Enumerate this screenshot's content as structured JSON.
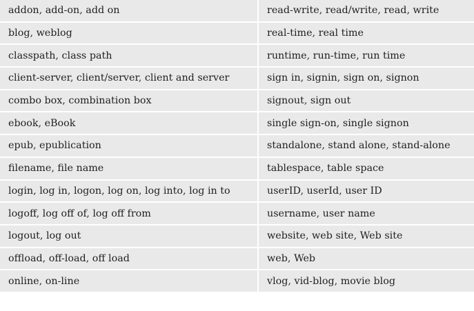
{
  "rows": [
    {
      "left": "addon, add-on, add on",
      "right": "read-write, read/write, read, write"
    },
    {
      "left": "blog, weblog",
      "right": "real-time, real time"
    },
    {
      "left": "classpath, class path",
      "right": "runtime, run-time, run time"
    },
    {
      "left": "client-server, client/server, client and server",
      "right": "sign in, signin, sign on, signon"
    },
    {
      "left": "combo box, combination box",
      "right": "signout, sign out"
    },
    {
      "left": "ebook, eBook",
      "right": "single sign-on, single signon"
    },
    {
      "left": "epub, epublication",
      "right": "standalone, stand alone, stand-alone"
    },
    {
      "left": "filename, file name",
      "right": "tablespace, table space"
    },
    {
      "left": "login, log in, logon, log on, log into, log in to",
      "right": "userID, userId, user ID"
    },
    {
      "left": "logoff, log off of, log off from",
      "right": "username, user name"
    },
    {
      "left": "logout, log out",
      "right": "website, web site, Web site"
    },
    {
      "left": "offload, off-load, off load",
      "right": "web, Web"
    },
    {
      "left": "online, on-line",
      "right": "vlog, vid-blog, movie blog"
    }
  ],
  "colors": {
    "cell_background": "#e9e9e9",
    "separator": "#ffffff",
    "text": "#1f1f1f"
  }
}
